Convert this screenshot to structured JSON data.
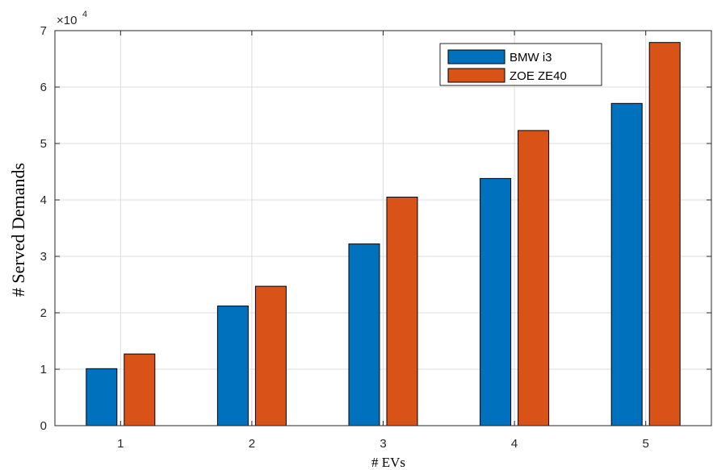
{
  "chart_data": {
    "type": "bar",
    "categories": [
      "1",
      "2",
      "3",
      "4",
      "5"
    ],
    "series": [
      {
        "name": "BMW i3",
        "color": "#0072BD",
        "values": [
          10100,
          21200,
          32200,
          43800,
          57100
        ]
      },
      {
        "name": "ZOE ZE40",
        "color": "#D95319",
        "values": [
          12700,
          24700,
          40500,
          52300,
          67900
        ]
      }
    ],
    "xlabel": "# EVs",
    "ylabel": "# Served Demands",
    "ylim": [
      0,
      70000
    ],
    "yticks": [
      0,
      1,
      2,
      3,
      4,
      5,
      6,
      7
    ],
    "y_exponent_label": {
      "base": "×10",
      "exp": "4"
    },
    "grid": true,
    "legend_position": "top-right"
  }
}
